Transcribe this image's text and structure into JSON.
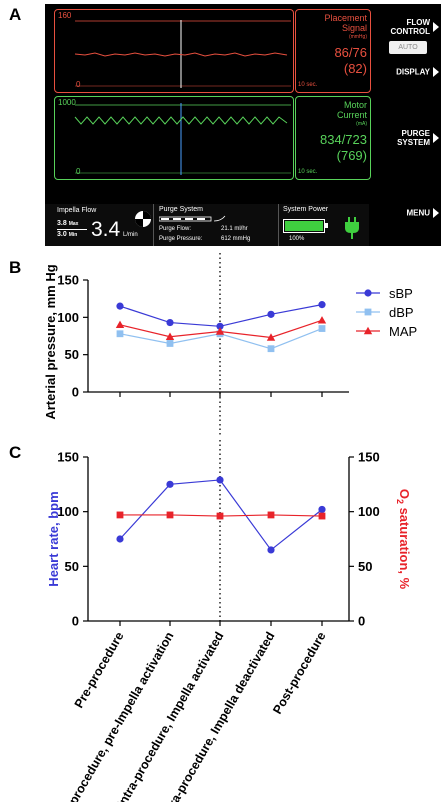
{
  "panels": {
    "a": "A",
    "b": "B",
    "c": "C"
  },
  "monitor": {
    "placement": {
      "scale_max": "160",
      "scale_min": "0",
      "label": "Placement\nSignal",
      "unit": "(mmHg)",
      "value": "86/76",
      "mean": "(82)",
      "time": "10 sec."
    },
    "motor": {
      "scale_max": "1000",
      "scale_min": "0",
      "label": "Motor\nCurrent",
      "unit": "(mA)",
      "value": "834/723",
      "mean": "(769)",
      "time": "10 sec."
    },
    "buttons": {
      "flow_control": "FLOW\nCONTROL",
      "auto": "AUTO",
      "display": "DISPLAY",
      "purge_system": "PURGE\nSYSTEM",
      "menu": "MENU"
    },
    "impella_flow": {
      "title": "Impella Flow",
      "max": "3.8",
      "max_unit": "Max",
      "min": "3.0",
      "min_unit": "Min",
      "value": "3.4",
      "unit": "L/min"
    },
    "purge": {
      "title": "Purge System",
      "flow_label": "Purge Flow:",
      "flow_value": "21.1 ml/hr",
      "pressure_label": "Purge Pressure:",
      "pressure_value": "612 mmHg"
    },
    "power": {
      "title": "System Power",
      "percent": "100%",
      "level": 1.0
    },
    "colors": {
      "placement": "#e8503f",
      "motor": "#58d25a"
    }
  },
  "chart_data": [
    {
      "type": "line",
      "categories": [
        "Pre-procedure",
        "Intra-procedure, pre-Impella activation",
        "Intra-procedure, Impella activated",
        "Intra-procedure, Impella deactivated",
        "Post-procedure"
      ],
      "ylabel": "Arterial pressure, mm Hg",
      "ylim": [
        0,
        150
      ],
      "yticks": [
        0,
        50,
        100,
        150
      ],
      "legend_position": "top-right",
      "series": [
        {
          "name": "sBP",
          "values": [
            115,
            93,
            88,
            104,
            117
          ],
          "color": "#3a3ad6",
          "marker": "circle"
        },
        {
          "name": "dBP",
          "values": [
            78,
            65,
            78,
            58,
            85
          ],
          "color": "#90c0f0",
          "marker": "square"
        },
        {
          "name": "MAP",
          "values": [
            90,
            74,
            81,
            73,
            96
          ],
          "color": "#e8232a",
          "marker": "triangle"
        }
      ],
      "annotation": "dotted vertical line at Intra-procedure, Impella activated"
    },
    {
      "type": "line",
      "categories": [
        "Pre-procedure",
        "Intra-procedure, pre-Impella activation",
        "Intra-procedure, Impella activated",
        "Intra-procedure, Impella deactivated",
        "Post-procedure"
      ],
      "ylabel": "Heart rate, bpm",
      "y2label_main": "O",
      "y2label_sub": "2",
      "y2label_rest": " saturation, %",
      "ylim": [
        0,
        150
      ],
      "y2lim": [
        0,
        150
      ],
      "yticks": [
        0,
        50,
        100,
        150
      ],
      "series": [
        {
          "values": [
            75,
            125,
            129,
            65,
            102
          ],
          "color": "#3a3ad6",
          "marker": "circle",
          "axis": "left"
        },
        {
          "values": [
            97,
            97,
            96,
            97,
            96
          ],
          "color": "#e8232a",
          "marker": "square",
          "axis": "right"
        }
      ],
      "annotation": "dotted vertical line at Intra-procedure, Impella activated"
    }
  ]
}
